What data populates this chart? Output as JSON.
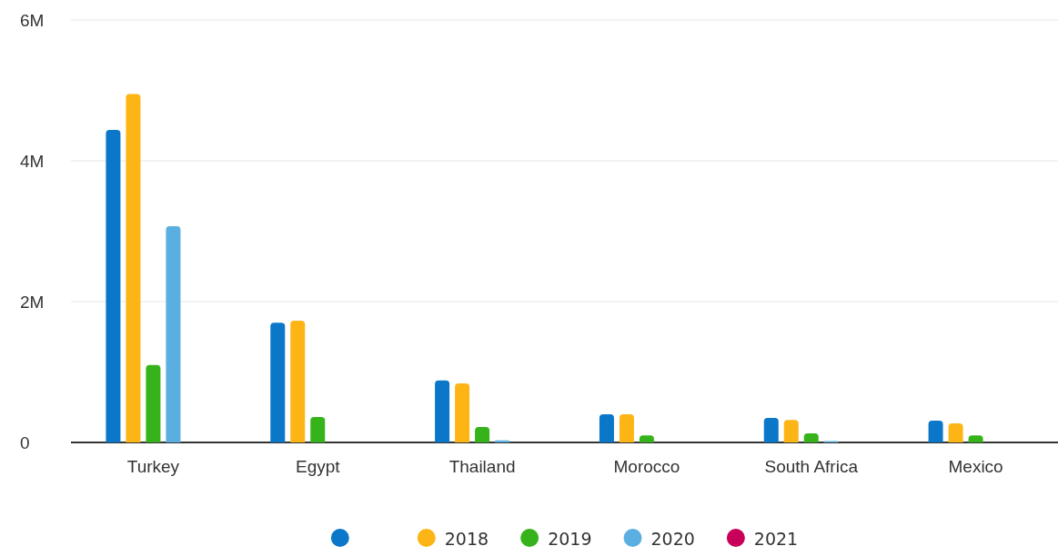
{
  "chart_data": {
    "type": "bar",
    "categories": [
      "Turkey",
      "Egypt",
      "Thailand",
      "Morocco",
      "South Africa",
      "Mexico"
    ],
    "series": [
      {
        "color": "#0a77c9",
        "values": [
          4.44,
          1.7,
          0.88,
          0.4,
          0.35,
          0.31
        ]
      },
      {
        "name": "2018",
        "color": "#fdb515",
        "values": [
          4.95,
          1.73,
          0.84,
          0.4,
          0.32,
          0.27
        ]
      },
      {
        "name": "2019",
        "color": "#36b31a",
        "values": [
          1.1,
          0.36,
          0.22,
          0.1,
          0.13,
          0.1
        ]
      },
      {
        "name": "2020",
        "color": "#5aaee0",
        "values": [
          3.07,
          null,
          0.03,
          null,
          0.02,
          null
        ]
      },
      {
        "name": "2021",
        "color": "#c8005a",
        "values": [
          null,
          null,
          null,
          null,
          null,
          null
        ]
      }
    ],
    "ylim": [
      0,
      6
    ],
    "yticks": [
      {
        "value": 0,
        "label": "0"
      },
      {
        "value": 2,
        "label": "2M"
      },
      {
        "value": 4,
        "label": "4M"
      },
      {
        "value": 6,
        "label": "6M"
      }
    ],
    "grid": "y",
    "legend": "bottom"
  }
}
